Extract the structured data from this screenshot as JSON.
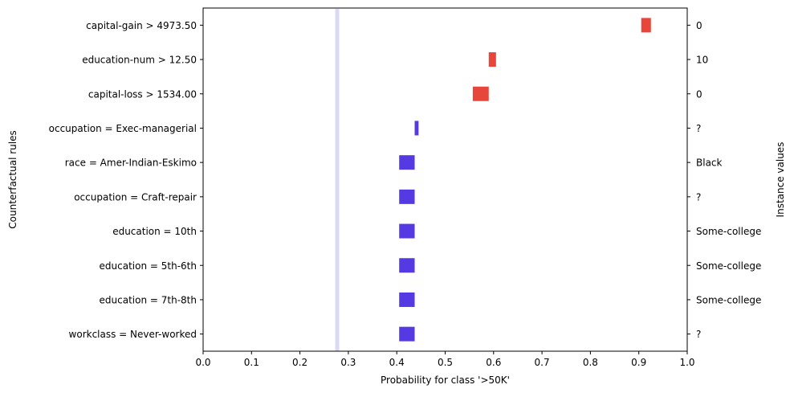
{
  "chart_data": {
    "type": "bar",
    "xlabel": "Probability for class '>50K'",
    "ylabel": "Counterfactual rules",
    "y2label": "Instance values",
    "xlim": [
      0.0,
      1.0
    ],
    "xticks": [
      "0.0",
      "0.1",
      "0.2",
      "0.3",
      "0.4",
      "0.5",
      "0.6",
      "0.7",
      "0.8",
      "0.9",
      "1.0"
    ],
    "baseline_probability": 0.277,
    "rules": [
      {
        "rule": "capital-gain > 4973.50",
        "instance_value": "0",
        "low": 0.905,
        "high": 0.925,
        "color": "#e8463a"
      },
      {
        "rule": "education-num > 12.50",
        "instance_value": "10",
        "low": 0.59,
        "high": 0.605,
        "color": "#e8463a"
      },
      {
        "rule": "capital-loss > 1534.00",
        "instance_value": "0",
        "low": 0.557,
        "high": 0.59,
        "color": "#e8463a"
      },
      {
        "rule": "occupation = Exec-managerial",
        "instance_value": "?",
        "low": 0.437,
        "high": 0.445,
        "color": "#5539e3"
      },
      {
        "rule": "race = Amer-Indian-Eskimo",
        "instance_value": "Black",
        "low": 0.405,
        "high": 0.437,
        "color": "#5539e3"
      },
      {
        "rule": "occupation = Craft-repair",
        "instance_value": "?",
        "low": 0.405,
        "high": 0.437,
        "color": "#5539e3"
      },
      {
        "rule": "education = 10th",
        "instance_value": "Some-college",
        "low": 0.405,
        "high": 0.437,
        "color": "#5539e3"
      },
      {
        "rule": "education = 5th-6th",
        "instance_value": "Some-college",
        "low": 0.405,
        "high": 0.437,
        "color": "#5539e3"
      },
      {
        "rule": "education = 7th-8th",
        "instance_value": "Some-college",
        "low": 0.405,
        "high": 0.437,
        "color": "#5539e3"
      },
      {
        "rule": "workclass = Never-worked",
        "instance_value": "?",
        "low": 0.405,
        "high": 0.437,
        "color": "#5539e3"
      }
    ],
    "baseline_color": "#dcd9f5",
    "grid": false,
    "legend": "none"
  }
}
